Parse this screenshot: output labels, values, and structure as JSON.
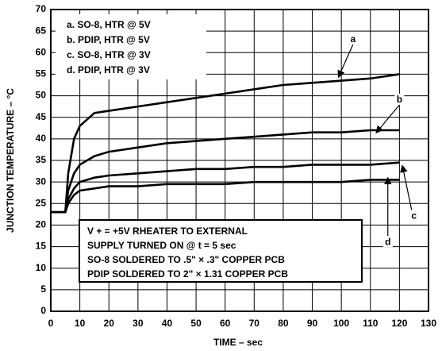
{
  "chart_data": {
    "type": "line",
    "xlabel": "TIME – sec",
    "ylabel": "JUNCTION TEMPERATURE – °C",
    "x": [
      0,
      5,
      6,
      8,
      10,
      15,
      20,
      30,
      40,
      50,
      60,
      70,
      80,
      90,
      100,
      110,
      120
    ],
    "series": [
      {
        "name": "a. SO-8, HTR @ 5V",
        "color": "#000000",
        "values": [
          23,
          23,
          32,
          40,
          43,
          46,
          46.5,
          47.5,
          48.5,
          49.5,
          50.5,
          51.5,
          52.5,
          53,
          53.5,
          54,
          55
        ]
      },
      {
        "name": "b. PDIP, HTR @ 5V",
        "color": "#000000",
        "values": [
          23,
          23,
          28,
          32,
          34,
          36,
          37,
          38,
          39,
          39.5,
          40,
          40.5,
          41,
          41.5,
          41.5,
          42,
          42
        ]
      },
      {
        "name": "c. SO-8, HTR @ 3V",
        "color": "#000000",
        "values": [
          23,
          23,
          26,
          28.5,
          30,
          31,
          31.5,
          32,
          32.5,
          33,
          33,
          33.5,
          33.5,
          34,
          34,
          34,
          34.5
        ]
      },
      {
        "name": "d. PDIP, HTR @ 3V",
        "color": "#000000",
        "values": [
          23,
          23,
          25,
          27,
          28,
          28.5,
          29,
          29,
          29.5,
          29.5,
          29.5,
          30,
          30,
          30,
          30,
          30.5,
          30.5
        ]
      }
    ],
    "annotations": [
      "a",
      "b",
      "c",
      "d"
    ],
    "notes": [
      "V + =  +5V RHEATER TO EXTERNAL",
      "SUPPLY TURNED ON @ t = 5 sec",
      "SO-8 SOLDERED TO .5\" × .3\" COPPER PCB",
      "PDIP SOLDERED TO 2\" × 1.31 COPPER PCB"
    ],
    "xlim": [
      0,
      130
    ],
    "xticks": [
      0,
      10,
      20,
      30,
      40,
      50,
      60,
      70,
      80,
      90,
      100,
      110,
      120,
      130
    ],
    "ylim": [
      0,
      70
    ],
    "yticks": [
      0,
      5,
      10,
      15,
      20,
      25,
      30,
      35,
      40,
      45,
      50,
      55,
      60,
      65,
      70
    ],
    "grid": true
  }
}
